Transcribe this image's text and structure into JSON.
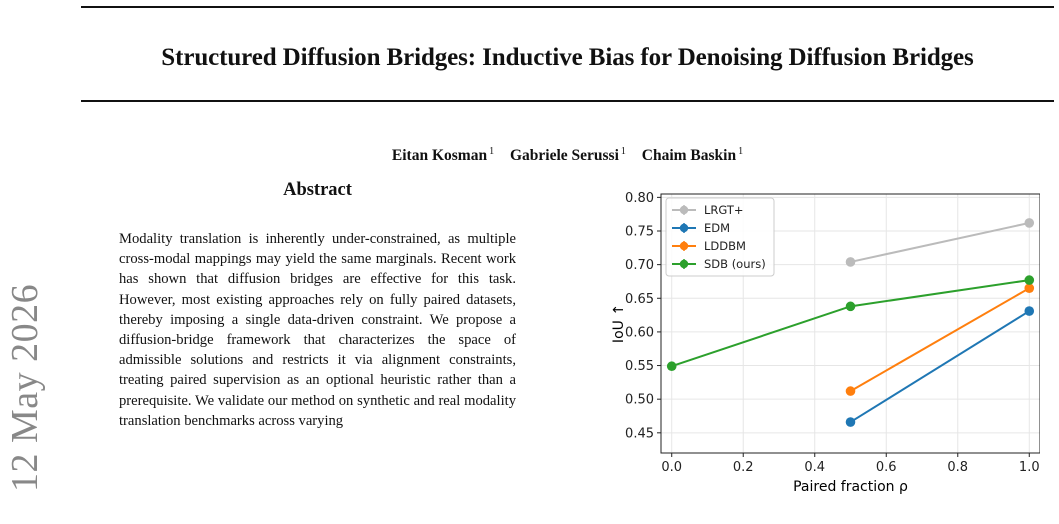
{
  "paper": {
    "title": "Structured Diffusion Bridges: Inductive Bias for Denoising Diffusion Bridges",
    "authors": [
      {
        "name": "Eitan Kosman",
        "affil": "1"
      },
      {
        "name": "Gabriele Serussi",
        "affil": "1"
      },
      {
        "name": "Chaim Baskin",
        "affil": "1"
      }
    ],
    "arxiv_date": "12 May 2026",
    "abstract_heading": "Abstract",
    "abstract_text": "Modality translation is inherently under-constrained, as multiple cross-modal mappings may yield the same marginals. Recent work has shown that diffusion bridges are effective for this task. However, most existing approaches rely on fully paired datasets, thereby imposing a single data-driven constraint. We propose a diffusion-bridge framework that characterizes the space of admissible solutions and restricts it via alignment constraints, treating paired supervision as an optional heuristic rather than a prerequisite. We validate our method on synthetic and real modality translation benchmarks across varying"
  },
  "chart_data": {
    "type": "line",
    "xlabel": "Paired fraction ρ",
    "ylabel": "IoU ↑",
    "xlim": [
      -0.03,
      1.03
    ],
    "ylim": [
      0.42,
      0.805
    ],
    "xticks": [
      0.0,
      0.2,
      0.4,
      0.6,
      0.8,
      1.0
    ],
    "xtick_labels": [
      "0.0",
      "0.2",
      "0.4",
      "0.6",
      "0.8",
      "1.0"
    ],
    "yticks": [
      0.45,
      0.5,
      0.55,
      0.6,
      0.65,
      0.7,
      0.75,
      0.8
    ],
    "ytick_labels": [
      "0.45",
      "0.50",
      "0.55",
      "0.60",
      "0.65",
      "0.70",
      "0.75",
      "0.80"
    ],
    "grid": true,
    "legend_position": "top-left",
    "series": [
      {
        "name": "LRGT+",
        "color": "#bbbbbb",
        "x": [
          0.5,
          1.0
        ],
        "y": [
          0.704,
          0.762
        ]
      },
      {
        "name": "EDM",
        "color": "#1f77b4",
        "x": [
          0.5,
          1.0
        ],
        "y": [
          0.466,
          0.631
        ]
      },
      {
        "name": "LDDBM",
        "color": "#ff7f0e",
        "x": [
          0.5,
          1.0
        ],
        "y": [
          0.512,
          0.665
        ]
      },
      {
        "name": "SDB (ours)",
        "color": "#2ca02c",
        "x": [
          0.0,
          0.5,
          1.0
        ],
        "y": [
          0.549,
          0.638,
          0.677
        ]
      }
    ]
  }
}
